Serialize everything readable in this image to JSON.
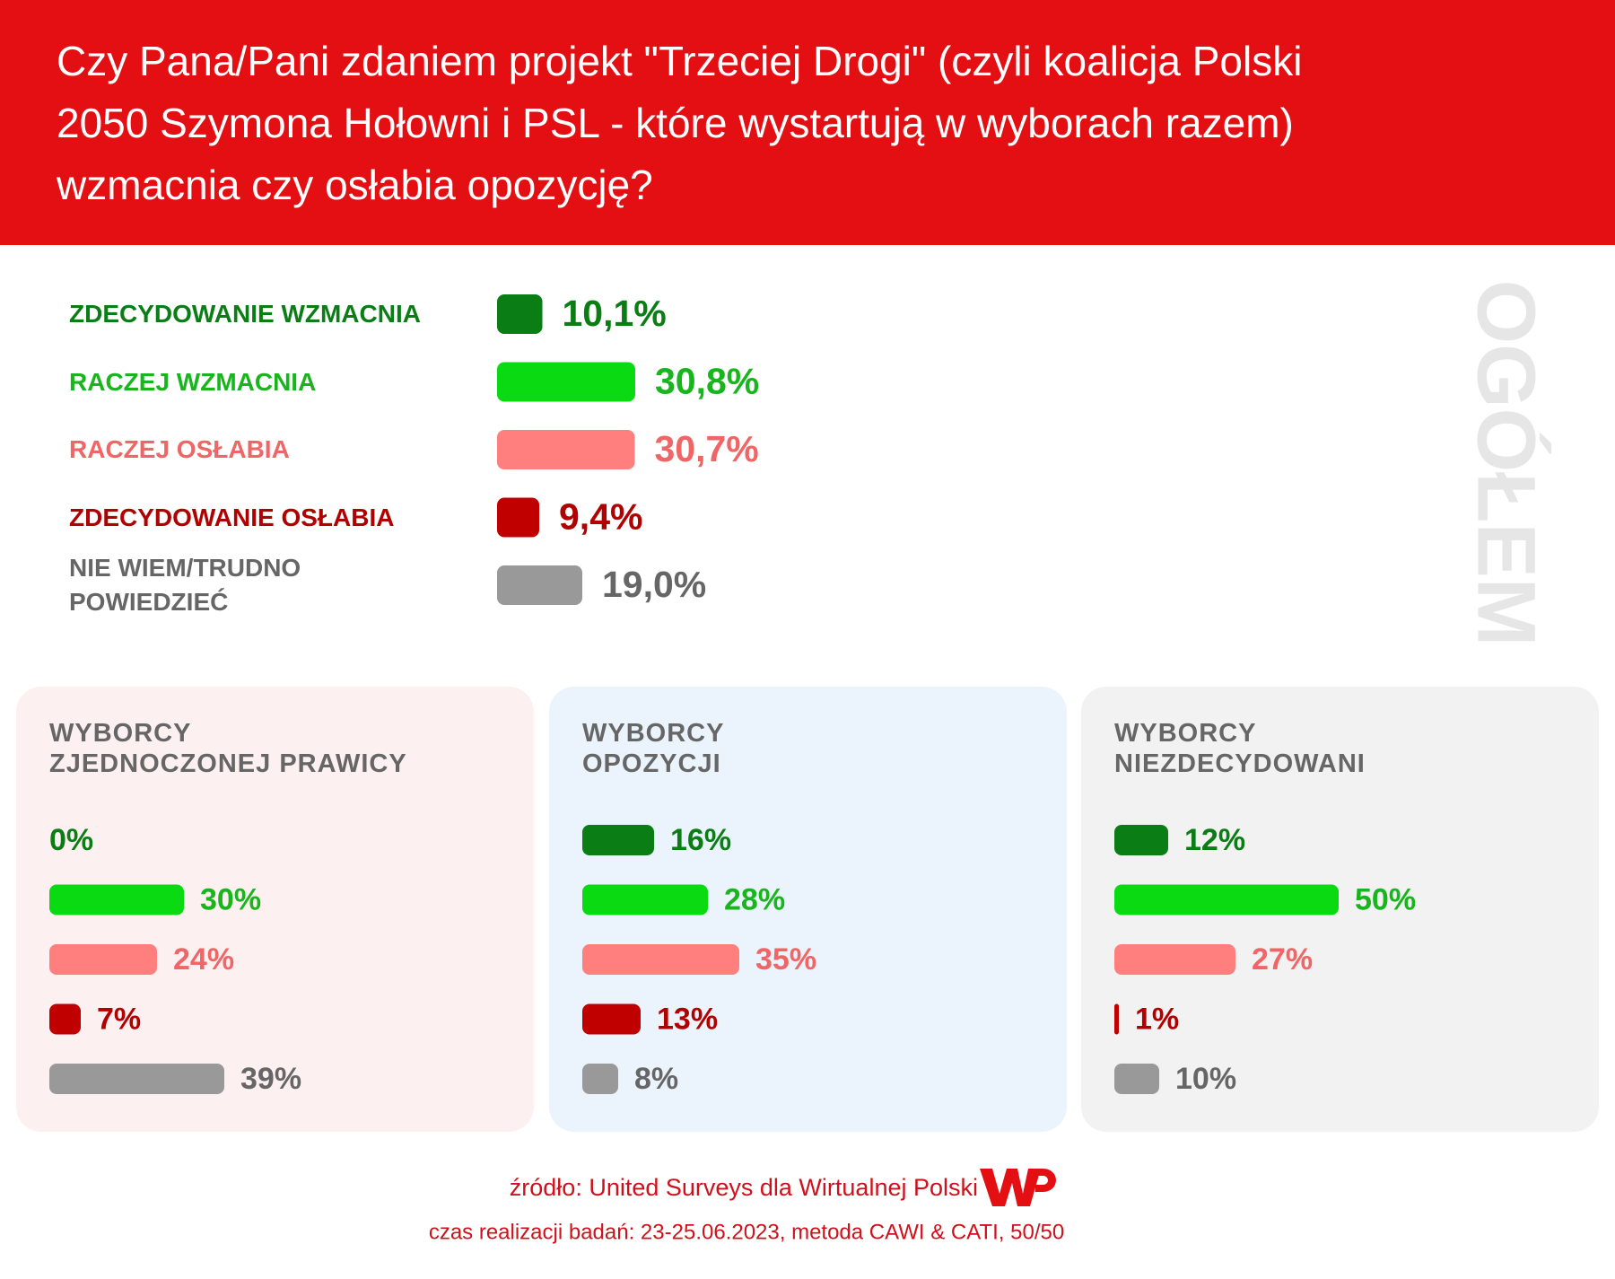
{
  "header": {
    "title": "Czy Pana/Pani zdaniem projekt \"Trzeciej Drogi\" (czyli koalicja Polski\n2050 Szymona Hołowni i PSL - które wystartują w wyborach razem)\nwzmacnia czy osłabia opozycję?"
  },
  "chart_data": [
    {
      "type": "bar",
      "title": "OGÓŁEM",
      "categories": [
        "ZDECYDOWANIE WZMACNIA",
        "RACZEJ WZMACNIA",
        "RACZEJ OSŁABIA",
        "ZDECYDOWANIE OSŁABIA",
        "NIE WIEM/TRUDNO\nPOWIEDZIEĆ"
      ],
      "values": [
        10.1,
        30.8,
        30.7,
        9.4,
        19.0
      ],
      "value_labels": [
        "10,1%",
        "30,8%",
        "30,7%",
        "9,4%",
        "19,0%"
      ],
      "colors": [
        "#0a7d14",
        "#0ada12",
        "#ff7f7f",
        "#c00000",
        "#999999"
      ],
      "text_colors": [
        "#0a7d14",
        "#18b51c",
        "#f06565",
        "#b00000",
        "#666666"
      ]
    },
    {
      "type": "bar",
      "title": "WYBORCY\nZJEDNOCZONEJ PRAWICY",
      "values": [
        0,
        30,
        24,
        7,
        39
      ],
      "value_labels": [
        "0%",
        "30%",
        "24%",
        "7%",
        "39%"
      ],
      "colors": [
        "#0a7d14",
        "#0ada12",
        "#ff7f7f",
        "#c00000",
        "#999999"
      ],
      "text_colors": [
        "#0a7d14",
        "#18b51c",
        "#f06565",
        "#b00000",
        "#666666"
      ]
    },
    {
      "type": "bar",
      "title": "WYBORCY\nOPOZYCJI",
      "values": [
        16,
        28,
        35,
        13,
        8
      ],
      "value_labels": [
        "16%",
        "28%",
        "35%",
        "13%",
        "8%"
      ],
      "colors": [
        "#0a7d14",
        "#0ada12",
        "#ff7f7f",
        "#c00000",
        "#999999"
      ],
      "text_colors": [
        "#0a7d14",
        "#18b51c",
        "#f06565",
        "#b00000",
        "#666666"
      ]
    },
    {
      "type": "bar",
      "title": "WYBORCY\nNIEZDECYDOWANI",
      "values": [
        12,
        50,
        27,
        1,
        10
      ],
      "value_labels": [
        "12%",
        "50%",
        "27%",
        "1%",
        "10%"
      ],
      "colors": [
        "#0a7d14",
        "#0ada12",
        "#ff7f7f",
        "#c00000",
        "#999999"
      ],
      "text_colors": [
        "#0a7d14",
        "#18b51c",
        "#f06565",
        "#b00000",
        "#666666"
      ]
    }
  ],
  "footer": {
    "source": "źródło: United Surveys dla Wirtualnej Polski",
    "details": "czas realizacji badań: 23-25.06.2023, metoda CAWI & CATI, 50/50"
  }
}
